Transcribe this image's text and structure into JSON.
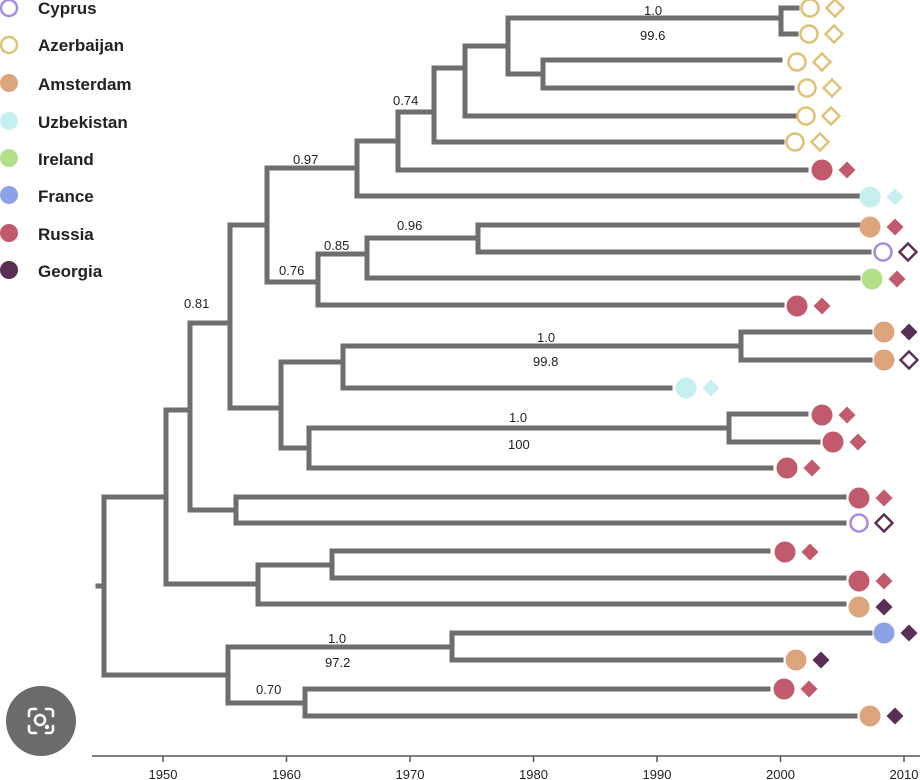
{
  "legend": [
    {
      "name": "Cyprus",
      "color": "#a98be8",
      "filled": false
    },
    {
      "name": "Azerbaijan",
      "color": "#e0c277",
      "filled": false
    },
    {
      "name": "Amsterdam",
      "color": "#dca57c",
      "filled": true
    },
    {
      "name": "Uzbekistan",
      "color": "#c6eff0",
      "filled": true
    },
    {
      "name": "Ireland",
      "color": "#b5e08a",
      "filled": true
    },
    {
      "name": "France",
      "color": "#8ba2e6",
      "filled": true
    },
    {
      "name": "Russia",
      "color": "#c25a6e",
      "filled": true
    },
    {
      "name": "Georgia",
      "color": "#5a2d55",
      "filled": true
    }
  ],
  "colors": {
    "branch": "#6e6e6e",
    "diamond_russia": "#c25a6e",
    "diamond_georgia": "#5a2d55",
    "diamond_azerbaijan": "#e0c277",
    "diamond_uzbekistan": "#c6eff0"
  },
  "axis": {
    "range": [
      1945,
      2010
    ],
    "ticks": [
      {
        "value": 1950,
        "label": "1950"
      },
      {
        "value": 1960,
        "label": "1960"
      },
      {
        "value": 1970,
        "label": "1970"
      },
      {
        "value": 1980,
        "label": "1980"
      },
      {
        "value": 1990,
        "label": "1990"
      },
      {
        "value": 2000,
        "label": "2000"
      },
      {
        "value": 2010,
        "label": "2010"
      }
    ]
  },
  "support_labels": [
    "1.0",
    "99.6",
    "0.74",
    "0.97",
    "0.96",
    "0.85",
    "0.76",
    "0.81",
    "1.0",
    "99.8",
    "1.0",
    "100",
    "1.0",
    "97.2",
    "0.70"
  ],
  "tips": [
    {
      "id": 1,
      "circle": "Azerbaijan",
      "diamond": "Azerbaijan",
      "diamond_filled": false
    },
    {
      "id": 2,
      "circle": "Azerbaijan",
      "diamond": "Azerbaijan",
      "diamond_filled": false
    },
    {
      "id": 3,
      "circle": "Azerbaijan",
      "diamond": "Azerbaijan",
      "diamond_filled": false
    },
    {
      "id": 4,
      "circle": "Azerbaijan",
      "diamond": "Azerbaijan",
      "diamond_filled": false
    },
    {
      "id": 5,
      "circle": "Azerbaijan",
      "diamond": "Azerbaijan",
      "diamond_filled": false
    },
    {
      "id": 6,
      "circle": "Azerbaijan",
      "diamond": "Azerbaijan",
      "diamond_filled": false
    },
    {
      "id": 7,
      "circle": "Russia",
      "diamond": "Russia",
      "diamond_filled": true
    },
    {
      "id": 8,
      "circle": "Uzbekistan",
      "diamond": "Uzbekistan",
      "diamond_filled": true
    },
    {
      "id": 9,
      "circle": "Amsterdam",
      "diamond": "Russia",
      "diamond_filled": true
    },
    {
      "id": 10,
      "circle": "Cyprus",
      "diamond": "Georgia",
      "diamond_filled": false
    },
    {
      "id": 11,
      "circle": "Ireland",
      "diamond": "Russia",
      "diamond_filled": true
    },
    {
      "id": 12,
      "circle": "Russia",
      "diamond": "Russia",
      "diamond_filled": true
    },
    {
      "id": 13,
      "circle": "Amsterdam",
      "diamond": "Georgia",
      "diamond_filled": true
    },
    {
      "id": 14,
      "circle": "Amsterdam",
      "diamond": "Georgia",
      "diamond_filled": false
    },
    {
      "id": 15,
      "circle": "Uzbekistan",
      "diamond": "Uzbekistan",
      "diamond_filled": true
    },
    {
      "id": 16,
      "circle": "Russia",
      "diamond": "Russia",
      "diamond_filled": true
    },
    {
      "id": 17,
      "circle": "Russia",
      "diamond": "Russia",
      "diamond_filled": true
    },
    {
      "id": 18,
      "circle": "Russia",
      "diamond": "Russia",
      "diamond_filled": true
    },
    {
      "id": 19,
      "circle": "Russia",
      "diamond": "Russia",
      "diamond_filled": true
    },
    {
      "id": 20,
      "circle": "Cyprus",
      "diamond": "Georgia",
      "diamond_filled": false
    },
    {
      "id": 21,
      "circle": "Russia",
      "diamond": "Russia",
      "diamond_filled": true
    },
    {
      "id": 22,
      "circle": "Russia",
      "diamond": "Russia",
      "diamond_filled": true
    },
    {
      "id": 23,
      "circle": "Amsterdam",
      "diamond": "Georgia",
      "diamond_filled": true
    },
    {
      "id": 24,
      "circle": "France",
      "diamond": "Georgia",
      "diamond_filled": true
    },
    {
      "id": 25,
      "circle": "Amsterdam",
      "diamond": "Georgia",
      "diamond_filled": true
    },
    {
      "id": 26,
      "circle": "Russia",
      "diamond": "Russia",
      "diamond_filled": true
    },
    {
      "id": 27,
      "circle": "Amsterdam",
      "diamond": "Georgia",
      "diamond_filled": true
    }
  ]
}
